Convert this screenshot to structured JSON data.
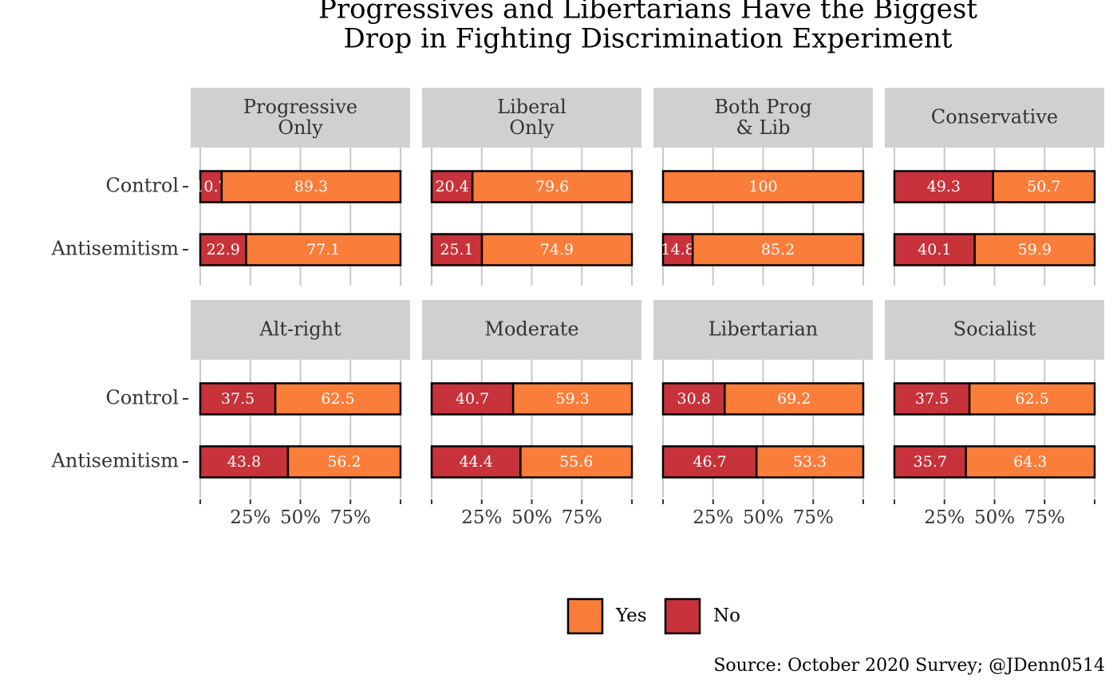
{
  "title": "Progressives and Libertarians Have the Biggest\nDrop in Fighting Discrimination Experiment",
  "caption": "Source: October 2020 Survey; @JDenn0514",
  "chart_data": [
    {
      "type": "bar",
      "title": "Progressive\nOnly",
      "categories": [
        "Control",
        "Antisemitism"
      ],
      "xlim": [
        0,
        100
      ],
      "xticks": [
        {
          "value": 25,
          "label": "25%"
        },
        {
          "value": 50,
          "label": "50%"
        },
        {
          "value": 75,
          "label": "75%"
        }
      ],
      "series": [
        {
          "name": "No",
          "color": "#c8323b",
          "values": [
            10.7,
            22.9
          ]
        },
        {
          "name": "Yes",
          "color": "#fb7d3a",
          "values": [
            89.3,
            77.1
          ]
        }
      ]
    },
    {
      "type": "bar",
      "title": "Liberal\nOnly",
      "categories": [
        "Control",
        "Antisemitism"
      ],
      "xlim": [
        0,
        100
      ],
      "xticks": [
        {
          "value": 25,
          "label": "25%"
        },
        {
          "value": 50,
          "label": "50%"
        },
        {
          "value": 75,
          "label": "75%"
        }
      ],
      "series": [
        {
          "name": "No",
          "color": "#c8323b",
          "values": [
            20.4,
            25.1
          ]
        },
        {
          "name": "Yes",
          "color": "#fb7d3a",
          "values": [
            79.6,
            74.9
          ]
        }
      ]
    },
    {
      "type": "bar",
      "title": "Both Prog\n& Lib",
      "categories": [
        "Control",
        "Antisemitism"
      ],
      "xlim": [
        0,
        100
      ],
      "xticks": [
        {
          "value": 25,
          "label": "25%"
        },
        {
          "value": 50,
          "label": "50%"
        },
        {
          "value": 75,
          "label": "75%"
        }
      ],
      "series": [
        {
          "name": "No",
          "color": "#c8323b",
          "values": [
            null,
            14.8
          ]
        },
        {
          "name": "Yes",
          "color": "#fb7d3a",
          "values": [
            100,
            85.2
          ]
        }
      ]
    },
    {
      "type": "bar",
      "title": "Conservative",
      "categories": [
        "Control",
        "Antisemitism"
      ],
      "xlim": [
        0,
        100
      ],
      "xticks": [
        {
          "value": 25,
          "label": "25%"
        },
        {
          "value": 50,
          "label": "50%"
        },
        {
          "value": 75,
          "label": "75%"
        }
      ],
      "series": [
        {
          "name": "No",
          "color": "#c8323b",
          "values": [
            49.3,
            40.1
          ]
        },
        {
          "name": "Yes",
          "color": "#fb7d3a",
          "values": [
            50.7,
            59.9
          ]
        }
      ]
    },
    {
      "type": "bar",
      "title": "Alt-right",
      "categories": [
        "Control",
        "Antisemitism"
      ],
      "xlim": [
        0,
        100
      ],
      "xticks": [
        {
          "value": 25,
          "label": "25%"
        },
        {
          "value": 50,
          "label": "50%"
        },
        {
          "value": 75,
          "label": "75%"
        }
      ],
      "series": [
        {
          "name": "No",
          "color": "#c8323b",
          "values": [
            37.5,
            43.8
          ]
        },
        {
          "name": "Yes",
          "color": "#fb7d3a",
          "values": [
            62.5,
            56.2
          ]
        }
      ]
    },
    {
      "type": "bar",
      "title": "Moderate",
      "categories": [
        "Control",
        "Antisemitism"
      ],
      "xlim": [
        0,
        100
      ],
      "xticks": [
        {
          "value": 25,
          "label": "25%"
        },
        {
          "value": 50,
          "label": "50%"
        },
        {
          "value": 75,
          "label": "75%"
        }
      ],
      "series": [
        {
          "name": "No",
          "color": "#c8323b",
          "values": [
            40.7,
            44.4
          ]
        },
        {
          "name": "Yes",
          "color": "#fb7d3a",
          "values": [
            59.3,
            55.6
          ]
        }
      ]
    },
    {
      "type": "bar",
      "title": "Libertarian",
      "categories": [
        "Control",
        "Antisemitism"
      ],
      "xlim": [
        0,
        100
      ],
      "xticks": [
        {
          "value": 25,
          "label": "25%"
        },
        {
          "value": 50,
          "label": "50%"
        },
        {
          "value": 75,
          "label": "75%"
        }
      ],
      "series": [
        {
          "name": "No",
          "color": "#c8323b",
          "values": [
            30.8,
            46.7
          ]
        },
        {
          "name": "Yes",
          "color": "#fb7d3a",
          "values": [
            69.2,
            53.3
          ]
        }
      ]
    },
    {
      "type": "bar",
      "title": "Socialist",
      "categories": [
        "Control",
        "Antisemitism"
      ],
      "xlim": [
        0,
        100
      ],
      "xticks": [
        {
          "value": 25,
          "label": "25%"
        },
        {
          "value": 50,
          "label": "50%"
        },
        {
          "value": 75,
          "label": "75%"
        }
      ],
      "series": [
        {
          "name": "No",
          "color": "#c8323b",
          "values": [
            37.5,
            35.7
          ]
        },
        {
          "name": "Yes",
          "color": "#fb7d3a",
          "values": [
            62.5,
            64.3
          ]
        }
      ]
    }
  ]
}
